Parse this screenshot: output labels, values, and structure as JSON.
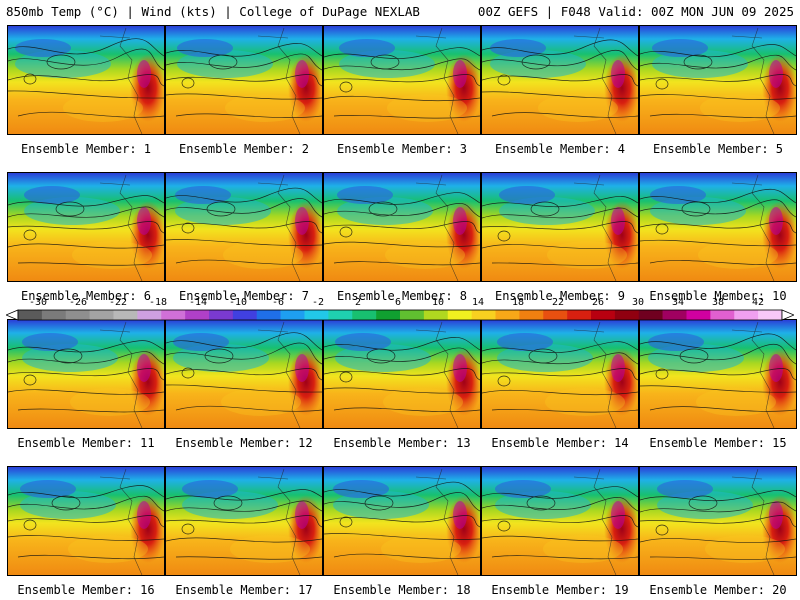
{
  "header": {
    "left": "850mb Temp (°C) | Wind (kts) | College of DuPage NEXLAB",
    "right": "00Z GEFS | F048 Valid: 00Z MON JUN 09 2025"
  },
  "colorbar": {
    "tick_labels": [
      "-30",
      "-26",
      "-22",
      "-18",
      "-14",
      "-10",
      "-6",
      "-2",
      "2",
      "6",
      "10",
      "14",
      "18",
      "22",
      "26",
      "30",
      "34",
      "38",
      "42"
    ],
    "colors": [
      "#5a5a5a",
      "#7b7b7b",
      "#8f8f8f",
      "#a3a3a3",
      "#b8b8b8",
      "#cfa0e0",
      "#d070d8",
      "#b040c8",
      "#7a3ad0",
      "#4040e0",
      "#1f6fe8",
      "#1e9ff0",
      "#22c8e8",
      "#1fd0b0",
      "#18c070",
      "#10a030",
      "#60c030",
      "#b0d820",
      "#f0f020",
      "#f8d020",
      "#f8a818",
      "#f08010",
      "#e85010",
      "#d82010",
      "#b80010",
      "#900010",
      "#700020",
      "#a00060",
      "#d000a0",
      "#e060d0",
      "#f0a0f0",
      "#f8c8f8"
    ]
  },
  "panels": [
    {
      "label": "Ensemble Member: 1"
    },
    {
      "label": "Ensemble Member: 2"
    },
    {
      "label": "Ensemble Member: 3"
    },
    {
      "label": "Ensemble Member: 4"
    },
    {
      "label": "Ensemble Member: 5"
    },
    {
      "label": "Ensemble Member: 6"
    },
    {
      "label": "Ensemble Member: 7"
    },
    {
      "label": "Ensemble Member: 8"
    },
    {
      "label": "Ensemble Member: 9"
    },
    {
      "label": "Ensemble Member: 10"
    },
    {
      "label": "Ensemble Member: 11"
    },
    {
      "label": "Ensemble Member: 12"
    },
    {
      "label": "Ensemble Member: 13"
    },
    {
      "label": "Ensemble Member: 14"
    },
    {
      "label": "Ensemble Member: 15"
    },
    {
      "label": "Ensemble Member: 16"
    },
    {
      "label": "Ensemble Member: 17"
    },
    {
      "label": "Ensemble Member: 18"
    },
    {
      "label": "Ensemble Member: 19"
    },
    {
      "label": "Ensemble Member: 20"
    }
  ]
}
